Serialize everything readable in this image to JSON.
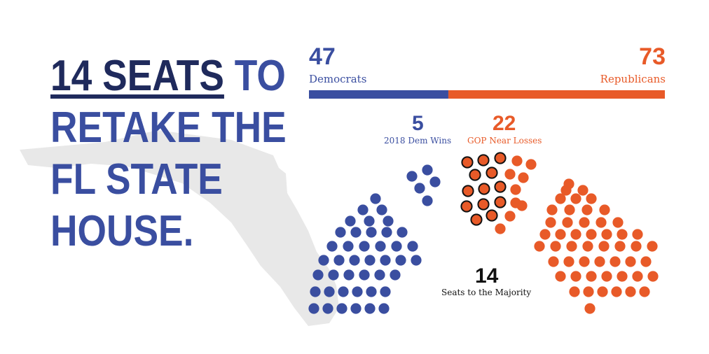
{
  "headline": {
    "line1_emph": "14 SEATS",
    "line1_rest": " TO",
    "line2": "RETAKE THE",
    "line3": "FL STATE",
    "line4": "HOUSE."
  },
  "totals": {
    "dem_count": "47",
    "dem_label": "Democrats",
    "rep_count": "73",
    "rep_label": "Republicans"
  },
  "callouts": {
    "dem_wins_count": "5",
    "dem_wins_label": "2018 Dem Wins",
    "gop_near_count": "22",
    "gop_near_label": "GOP Near Losses",
    "majority_count": "14",
    "majority_label": "Seats to the Majority"
  },
  "seat_groups": {
    "dem_main": 42,
    "dem_2018_wins": 5,
    "gop_near_losses": 22,
    "gop_main": 51
  },
  "colors": {
    "dem": "#3a4ea0",
    "rep": "#e85a28",
    "headline_dark": "#1f2a5c",
    "map": "#e6e6e6"
  }
}
